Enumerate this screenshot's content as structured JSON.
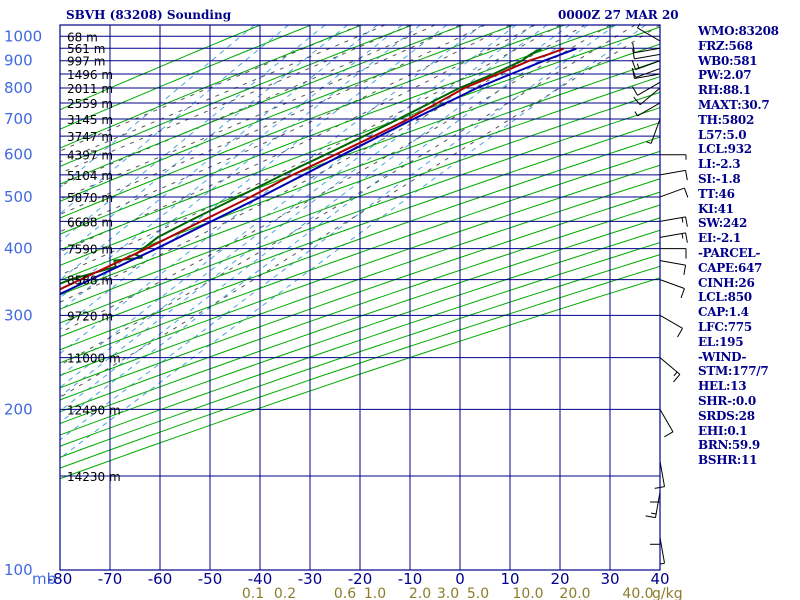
{
  "header": {
    "title": "SBVH (83208) Sounding",
    "date": "0000Z 27 MAR 20"
  },
  "indices": [
    "WMO:83208",
    "FRZ:568",
    "WB0:581",
    "PW:2.07",
    "RH:88.1",
    "MAXT:30.7",
    "TH:5802",
    "L57:5.0",
    "LCL:932",
    "LI:-2.3",
    "SI:-1.8",
    "TT:46",
    "KI:41",
    "SW:242",
    "EI:-2.1",
    "-PARCEL-",
    "CAPE:647",
    "CINH:26",
    "LCL:850",
    "CAP:1.4",
    "LFC:775",
    "EL:195",
    "-WIND-",
    "STM:177/7",
    "HEL:13",
    "SHR-:0.0",
    "SRDS:28",
    "EHI:0.1",
    "BRN:59.9",
    "BSHR:11"
  ],
  "colors": {
    "frame": "#00008b",
    "isobar": "#00008b",
    "dry_adiabat": "#00aa00",
    "moist_adiabat": "#555555",
    "mixing_ratio": "#4aa3df",
    "temperature": "#b00000",
    "dewpoint": "#006400",
    "parcel": "#0000b0",
    "pressure_label": "#4169e1",
    "temp_label": "#00008b",
    "mixing_label": "#8b7d2b",
    "height_label": "#000000",
    "wind_barb": "#000000"
  },
  "chart_data": {
    "type": "skew-t log-p",
    "title": "SBVH (83208) Sounding",
    "ylabel": "mb",
    "pressure_ticks": [
      100,
      200,
      300,
      400,
      500,
      600,
      700,
      800,
      900,
      1000
    ],
    "temperature_ticks": [
      -80,
      -70,
      -60,
      -50,
      -40,
      -30,
      -20,
      -10,
      0,
      10,
      20,
      30,
      40
    ],
    "mixing_ratio_labels": [
      "0.1",
      "0.2",
      "0.6",
      "1.0",
      "2.0",
      "3.0",
      "5.0",
      "10.0",
      "20.0",
      "40.0"
    ],
    "mixing_ratio_unit": "g/kg",
    "height_labels": [
      {
        "p": 150,
        "label": "14230 m"
      },
      {
        "p": 200,
        "label": "12490 m"
      },
      {
        "p": 250,
        "label": "11000 m"
      },
      {
        "p": 300,
        "label": "9720 m"
      },
      {
        "p": 350,
        "label": "8588 m"
      },
      {
        "p": 400,
        "label": "7590 m"
      },
      {
        "p": 450,
        "label": "6688 m"
      },
      {
        "p": 500,
        "label": "5870 m"
      },
      {
        "p": 550,
        "label": "5104 m"
      },
      {
        "p": 600,
        "label": "4397 m"
      },
      {
        "p": 650,
        "label": "3747 m"
      },
      {
        "p": 700,
        "label": "3145 m"
      },
      {
        "p": 750,
        "label": "2559 m"
      },
      {
        "p": 800,
        "label": "2011 m"
      },
      {
        "p": 850,
        "label": "1496 m"
      },
      {
        "p": 900,
        "label": "997 m"
      },
      {
        "p": 950,
        "label": "561 m"
      },
      {
        "p": 1000,
        "label": "68 m"
      }
    ],
    "temperature_profile": [
      [
        948,
        25.5
      ],
      [
        925,
        23.5
      ],
      [
        900,
        21.0
      ],
      [
        850,
        17.5
      ],
      [
        800,
        13.5
      ],
      [
        700,
        8.5
      ],
      [
        650,
        5.0
      ],
      [
        600,
        1.0
      ],
      [
        550,
        -3.5
      ],
      [
        500,
        -7.5
      ],
      [
        450,
        -12.5
      ],
      [
        400,
        -18.0
      ],
      [
        350,
        -25.0
      ],
      [
        300,
        -33.0
      ],
      [
        250,
        -43.0
      ],
      [
        200,
        -54.0
      ],
      [
        150,
        -66.0
      ],
      [
        100,
        -80.0
      ]
    ],
    "dewpoint_profile": [
      [
        948,
        21.0
      ],
      [
        925,
        20.0
      ],
      [
        900,
        19.5
      ],
      [
        850,
        16.5
      ],
      [
        800,
        12.5
      ],
      [
        700,
        6.5
      ],
      [
        650,
        3.0
      ],
      [
        600,
        -1.0
      ],
      [
        550,
        -5.5
      ],
      [
        500,
        -10.0
      ],
      [
        450,
        -15.0
      ],
      [
        420,
        -18.0
      ],
      [
        390,
        -19.0
      ],
      [
        385,
        -17.0
      ],
      [
        380,
        -22.0
      ],
      [
        370,
        -20.5
      ],
      [
        350,
        -27.0
      ],
      [
        300,
        -38.0
      ],
      [
        260,
        -47.0
      ],
      [
        250,
        -50.0
      ],
      [
        230,
        -54.0
      ],
      [
        220,
        -59.0
      ],
      [
        200,
        -63.0
      ],
      [
        170,
        -70.0
      ],
      [
        150,
        -76.0
      ],
      [
        130,
        -82.0
      ],
      [
        115,
        -88.0
      ]
    ],
    "parcel_profile": [
      [
        948,
        28.0
      ],
      [
        900,
        24.0
      ],
      [
        850,
        20.0
      ],
      [
        800,
        16.0
      ],
      [
        700,
        9.5
      ],
      [
        600,
        2.5
      ],
      [
        500,
        -5.5
      ],
      [
        400,
        -16.0
      ],
      [
        350,
        -23.0
      ],
      [
        300,
        -31.0
      ],
      [
        250,
        -42.0
      ],
      [
        200,
        -54.0
      ],
      [
        150,
        -68.0
      ],
      [
        120,
        -77.0
      ]
    ],
    "wind_barbs": [
      {
        "p": 980,
        "dir": 300,
        "spd": 5
      },
      {
        "p": 950,
        "dir": 260,
        "spd": 10
      },
      {
        "p": 925,
        "dir": 260,
        "spd": 10
      },
      {
        "p": 900,
        "dir": 250,
        "spd": 15
      },
      {
        "p": 870,
        "dir": 250,
        "spd": 10
      },
      {
        "p": 850,
        "dir": 260,
        "spd": 10
      },
      {
        "p": 820,
        "dir": 240,
        "spd": 10
      },
      {
        "p": 800,
        "dir": 230,
        "spd": 10
      },
      {
        "p": 750,
        "dir": 240,
        "spd": 5
      },
      {
        "p": 700,
        "dir": 200,
        "spd": 5
      },
      {
        "p": 600,
        "dir": 90,
        "spd": 5
      },
      {
        "p": 550,
        "dir": 80,
        "spd": 10
      },
      {
        "p": 500,
        "dir": 70,
        "spd": 10
      },
      {
        "p": 450,
        "dir": 80,
        "spd": 15
      },
      {
        "p": 420,
        "dir": 80,
        "spd": 15
      },
      {
        "p": 400,
        "dir": 90,
        "spd": 10
      },
      {
        "p": 380,
        "dir": 100,
        "spd": 10
      },
      {
        "p": 350,
        "dir": 110,
        "spd": 10
      },
      {
        "p": 300,
        "dir": 120,
        "spd": 10
      },
      {
        "p": 250,
        "dir": 130,
        "spd": 15
      },
      {
        "p": 200,
        "dir": 150,
        "spd": 10
      },
      {
        "p": 160,
        "dir": 170,
        "spd": 10
      },
      {
        "p": 150,
        "dir": 180,
        "spd": 10
      },
      {
        "p": 140,
        "dir": 190,
        "spd": 15
      },
      {
        "p": 125,
        "dir": 180,
        "spd": 10
      },
      {
        "p": 115,
        "dir": 170,
        "spd": 5
      }
    ]
  }
}
